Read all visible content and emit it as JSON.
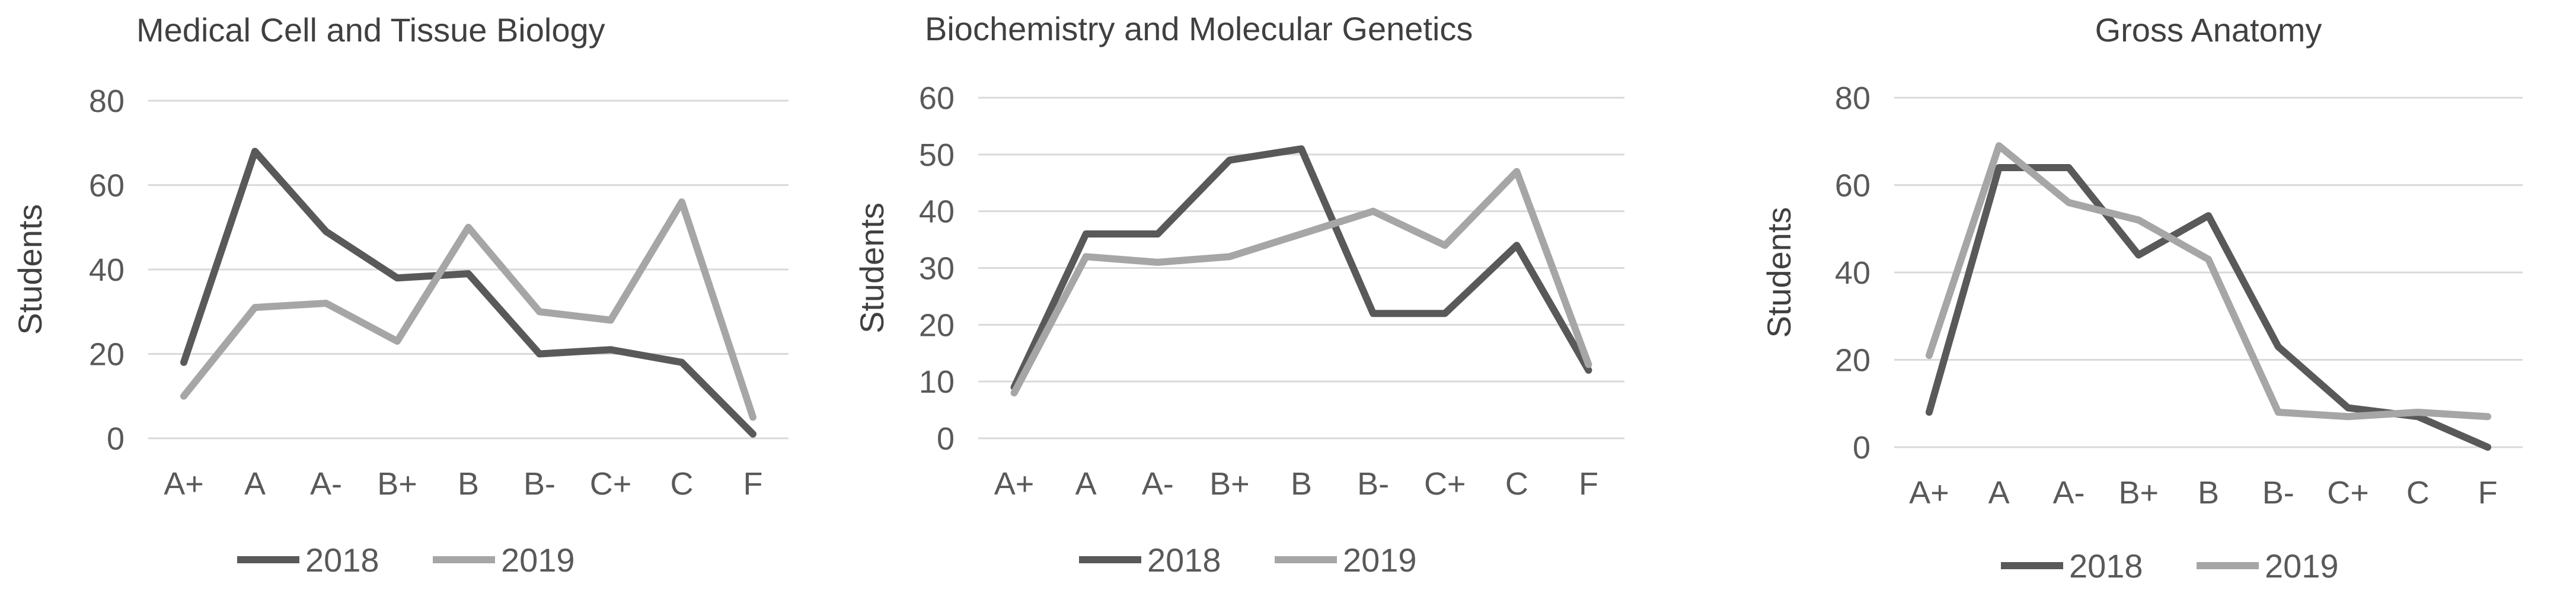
{
  "colors": {
    "s2018": "#595959",
    "s2019": "#a6a6a6",
    "grid": "#d9d9d9",
    "text": "#595959"
  },
  "chart_data": [
    {
      "type": "line",
      "title": "Medical Cell and Tissue Biology",
      "xlabel": "",
      "ylabel": "Students",
      "categories": [
        "A+",
        "A",
        "A-",
        "B+",
        "B",
        "B-",
        "C+",
        "C",
        "F"
      ],
      "ylim": [
        0,
        80
      ],
      "yticks": [
        0,
        20,
        40,
        60,
        80
      ],
      "grid": true,
      "legend": "bottom",
      "series": [
        {
          "name": "2018",
          "values": [
            18,
            68,
            49,
            38,
            39,
            20,
            21,
            18,
            1
          ]
        },
        {
          "name": "2019",
          "values": [
            10,
            31,
            32,
            23,
            50,
            30,
            28,
            56,
            5
          ]
        }
      ]
    },
    {
      "type": "line",
      "title": "Biochemistry and Molecular Genetics",
      "xlabel": "",
      "ylabel": "Students",
      "categories": [
        "A+",
        "A",
        "A-",
        "B+",
        "B",
        "B-",
        "C+",
        "C",
        "F"
      ],
      "ylim": [
        0,
        60
      ],
      "yticks": [
        0,
        10,
        20,
        30,
        40,
        50,
        60
      ],
      "grid": true,
      "legend": "bottom",
      "series": [
        {
          "name": "2018",
          "values": [
            9,
            36,
            36,
            49,
            51,
            22,
            22,
            34,
            12
          ]
        },
        {
          "name": "2019",
          "values": [
            8,
            32,
            31,
            32,
            36,
            40,
            34,
            47,
            13
          ]
        }
      ]
    },
    {
      "type": "line",
      "title": "Gross Anatomy",
      "xlabel": "",
      "ylabel": "Students",
      "categories": [
        "A+",
        "A",
        "A-",
        "B+",
        "B",
        "B-",
        "C+",
        "C",
        "F"
      ],
      "ylim": [
        0,
        80
      ],
      "yticks": [
        0,
        20,
        40,
        60,
        80
      ],
      "grid": true,
      "legend": "bottom",
      "series": [
        {
          "name": "2018",
          "values": [
            8,
            64,
            64,
            44,
            53,
            23,
            9,
            7,
            0
          ]
        },
        {
          "name": "2019",
          "values": [
            21,
            69,
            56,
            52,
            43,
            8,
            7,
            8,
            7
          ]
        }
      ]
    }
  ]
}
